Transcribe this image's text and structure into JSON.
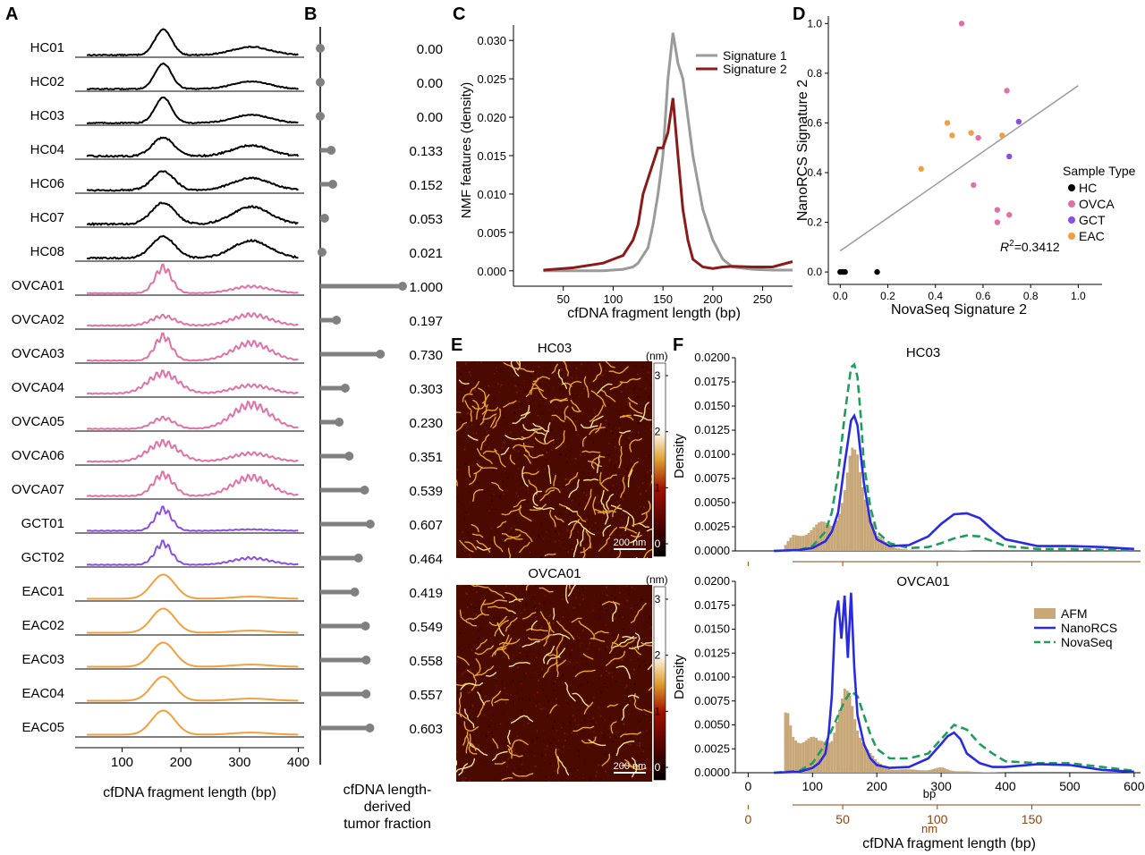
{
  "panel_letters": {
    "A": "A",
    "B": "B",
    "C": "C",
    "D": "D",
    "E": "E",
    "F": "F"
  },
  "colors": {
    "HC": "#000000",
    "OVCA": "#e070a8",
    "GCT": "#8a4fe0",
    "EAC": "#f0a040",
    "sig1": "#9a9a9a",
    "sig2": "#8b1a1a",
    "afm": "#c8a878",
    "nanorcs": "#2a2ae0",
    "novaseq": "#1e9e5a",
    "nm_axis": "#8b4513"
  },
  "chart_data": [
    {
      "id": "A",
      "type": "line",
      "xlabel": "cfDNA fragment length (bp)",
      "x_ticks": [
        100,
        200,
        300,
        400
      ],
      "xlim": [
        20,
        410
      ],
      "samples": [
        {
          "name": "HC01",
          "group": "HC"
        },
        {
          "name": "HC02",
          "group": "HC"
        },
        {
          "name": "HC03",
          "group": "HC"
        },
        {
          "name": "HC04",
          "group": "HC"
        },
        {
          "name": "HC06",
          "group": "HC"
        },
        {
          "name": "HC07",
          "group": "HC"
        },
        {
          "name": "HC08",
          "group": "HC"
        },
        {
          "name": "OVCA01",
          "group": "OVCA"
        },
        {
          "name": "OVCA02",
          "group": "OVCA"
        },
        {
          "name": "OVCA03",
          "group": "OVCA"
        },
        {
          "name": "OVCA04",
          "group": "OVCA"
        },
        {
          "name": "OVCA05",
          "group": "OVCA"
        },
        {
          "name": "OVCA06",
          "group": "OVCA"
        },
        {
          "name": "OVCA07",
          "group": "OVCA"
        },
        {
          "name": "GCT01",
          "group": "GCT"
        },
        {
          "name": "GCT02",
          "group": "GCT"
        },
        {
          "name": "EAC01",
          "group": "EAC"
        },
        {
          "name": "EAC02",
          "group": "EAC"
        },
        {
          "name": "EAC03",
          "group": "EAC"
        },
        {
          "name": "EAC04",
          "group": "EAC"
        },
        {
          "name": "EAC05",
          "group": "EAC"
        }
      ],
      "profile_params": [
        {
          "p1": 0.95,
          "p2": 0.3,
          "w": 0.15,
          "s": 0,
          "n": 0.04,
          "b": 0.05
        },
        {
          "p1": 0.95,
          "p2": 0.28,
          "w": 0.15,
          "s": 0,
          "n": 0.04,
          "b": 0.05
        },
        {
          "p1": 0.95,
          "p2": 0.3,
          "w": 0.15,
          "s": 0,
          "n": 0.04,
          "b": 0.05
        },
        {
          "p1": 0.7,
          "p2": 0.4,
          "w": 0.3,
          "s": 0,
          "n": 0.06,
          "b": 0.08
        },
        {
          "p1": 0.7,
          "p2": 0.45,
          "w": 0.3,
          "s": 0,
          "n": 0.06,
          "b": 0.08
        },
        {
          "p1": 0.8,
          "p2": 0.65,
          "w": 0.35,
          "s": 0,
          "n": 0.06,
          "b": 0.08
        },
        {
          "p1": 0.8,
          "p2": 0.65,
          "w": 0.35,
          "s": 0,
          "n": 0.06,
          "b": 0.08
        },
        {
          "p1": 0.95,
          "p2": 0.25,
          "w": 0.15,
          "s": 12,
          "n": 0,
          "b": 0.04
        },
        {
          "p1": 0.35,
          "p2": 0.4,
          "w": 0.35,
          "s": 10,
          "n": 0,
          "b": 0.1
        },
        {
          "p1": 0.9,
          "p2": 0.65,
          "w": 0.15,
          "s": 10,
          "n": 0,
          "b": 0.06
        },
        {
          "p1": 0.75,
          "p2": 0.3,
          "w": 0.55,
          "s": 10,
          "n": 0,
          "b": 0.1
        },
        {
          "p1": 0.4,
          "p2": 0.9,
          "w": 0.3,
          "s": 10,
          "n": 0,
          "b": 0.05
        },
        {
          "p1": 0.7,
          "p2": 0.3,
          "w": 0.55,
          "s": 10,
          "n": 0,
          "b": 0.1
        },
        {
          "p1": 0.8,
          "p2": 0.7,
          "w": 0.25,
          "s": 10,
          "n": 0,
          "b": 0.08
        },
        {
          "p1": 0.8,
          "p2": 0.05,
          "w": 0.15,
          "s": 10,
          "n": 0,
          "b": 0.05
        },
        {
          "p1": 0.8,
          "p2": 0.25,
          "w": 0.15,
          "s": 10,
          "n": 0,
          "b": 0.05
        },
        {
          "p1": 0.9,
          "p2": 0.08,
          "w": 0.35,
          "s": 0,
          "n": 0,
          "b": 0.05
        },
        {
          "p1": 0.9,
          "p2": 0.08,
          "w": 0.35,
          "s": 0,
          "n": 0,
          "b": 0.05
        },
        {
          "p1": 0.9,
          "p2": 0.08,
          "w": 0.35,
          "s": 0,
          "n": 0,
          "b": 0.05
        },
        {
          "p1": 0.9,
          "p2": 0.08,
          "w": 0.35,
          "s": 0,
          "n": 0,
          "b": 0.05
        },
        {
          "p1": 0.9,
          "p2": 0.08,
          "w": 0.35,
          "s": 0,
          "n": 0,
          "b": 0.05
        }
      ]
    },
    {
      "id": "B",
      "type": "bar",
      "xlabel": [
        "cfDNA length-",
        "derived",
        "tumor fraction"
      ],
      "xlim": [
        0,
        1
      ],
      "categories": [
        "HC01",
        "HC02",
        "HC03",
        "HC04",
        "HC06",
        "HC07",
        "HC08",
        "OVCA01",
        "OVCA02",
        "OVCA03",
        "OVCA04",
        "OVCA05",
        "OVCA06",
        "OVCA07",
        "GCT01",
        "GCT02",
        "EAC01",
        "EAC02",
        "EAC03",
        "EAC04",
        "EAC05"
      ],
      "values": [
        0,
        0,
        0,
        0.133,
        0.152,
        0.053,
        0.021,
        1,
        0.197,
        0.73,
        0.303,
        0.23,
        0.351,
        0.539,
        0.607,
        0.464,
        0.419,
        0.549,
        0.558,
        0.557,
        0.603
      ],
      "value_labels": [
        "0.00",
        "0.00",
        "0.00",
        "0.133",
        "0.152",
        "0.053",
        "0.021",
        "1.000",
        "0.197",
        "0.730",
        "0.303",
        "0.230",
        "0.351",
        "0.539",
        "0.607",
        "0.464",
        "0.419",
        "0.549",
        "0.558",
        "0.557",
        "0.603"
      ]
    },
    {
      "id": "C",
      "type": "line",
      "xlabel": "cfDNA fragment length (bp)",
      "ylabel": "NMF features (density)",
      "xlim": [
        0,
        280
      ],
      "ylim": [
        -0.002,
        0.032
      ],
      "x_ticks": [
        50,
        100,
        150,
        200,
        250
      ],
      "y_ticks": [
        0,
        0.005,
        0.01,
        0.015,
        0.02,
        0.025,
        0.03
      ],
      "y_tick_labels": [
        "0.000",
        "0.005",
        "0.010",
        "0.015",
        "0.020",
        "0.025",
        "0.030"
      ],
      "series": [
        {
          "name": "Signature 1",
          "x": [
            30,
            60,
            90,
            110,
            120,
            125,
            130,
            135,
            140,
            145,
            150,
            155,
            160,
            165,
            170,
            175,
            180,
            190,
            200,
            210,
            220,
            240,
            260,
            280
          ],
          "y": [
            0,
            0,
            0,
            0.0002,
            0.0005,
            0.001,
            0.002,
            0.003,
            0.006,
            0.01,
            0.015,
            0.025,
            0.031,
            0.027,
            0.025,
            0.02,
            0.015,
            0.008,
            0.004,
            0.0015,
            0.0005,
            0.0002,
            0.0001,
            0.0001
          ]
        },
        {
          "name": "Signature 2",
          "x": [
            30,
            60,
            90,
            100,
            110,
            115,
            120,
            125,
            130,
            135,
            140,
            145,
            150,
            155,
            160,
            165,
            170,
            175,
            180,
            190,
            200,
            210,
            220,
            240,
            260,
            280
          ],
          "y": [
            0.0001,
            0.0004,
            0.001,
            0.0015,
            0.002,
            0.003,
            0.004,
            0.006,
            0.01,
            0.012,
            0.014,
            0.016,
            0.016,
            0.018,
            0.0225,
            0.015,
            0.008,
            0.004,
            0.0015,
            0.0005,
            0.0003,
            0.0005,
            0.0006,
            0.0005,
            0.0005,
            0.0012
          ]
        }
      ]
    },
    {
      "id": "D",
      "type": "scatter",
      "xlabel": "NovaSeq Signature 2",
      "ylabel": "NanoRCS Signature 2",
      "xlim": [
        -0.05,
        1.1
      ],
      "ylim": [
        -0.05,
        1.03
      ],
      "x_ticks": [
        0,
        0.2,
        0.4,
        0.6,
        0.8,
        1
      ],
      "x_tick_labels": [
        "0.0",
        "0.2",
        "0.4",
        "0.6",
        "0.8",
        "1.0"
      ],
      "y_ticks": [
        0,
        0.2,
        0.4,
        0.6,
        0.8,
        1
      ],
      "y_tick_labels": [
        "0.0",
        "0.2",
        "0.4",
        "0.6",
        "0.8",
        "1.0"
      ],
      "legend_title": "Sample Type",
      "legend": [
        "HC",
        "OVCA",
        "GCT",
        "EAC"
      ],
      "annotation": {
        "prefix": "R",
        "sup": "2",
        "suffix": "=0.3412"
      },
      "fit_line": {
        "x": [
          0,
          1
        ],
        "y": [
          0.085,
          0.75
        ]
      },
      "points": [
        {
          "g": "HC",
          "x": 0,
          "y": 0
        },
        {
          "g": "HC",
          "x": 0.02,
          "y": 0
        },
        {
          "g": "HC",
          "x": 0.01,
          "y": 0
        },
        {
          "g": "HC",
          "x": 0.155,
          "y": 0
        },
        {
          "g": "OVCA",
          "x": 0.51,
          "y": 1
        },
        {
          "g": "OVCA",
          "x": 0.7,
          "y": 0.73
        },
        {
          "g": "OVCA",
          "x": 0.58,
          "y": 0.54
        },
        {
          "g": "OVCA",
          "x": 0.56,
          "y": 0.35
        },
        {
          "g": "OVCA",
          "x": 0.66,
          "y": 0.25
        },
        {
          "g": "OVCA",
          "x": 0.71,
          "y": 0.23
        },
        {
          "g": "OVCA",
          "x": 0.66,
          "y": 0.2
        },
        {
          "g": "GCT",
          "x": 0.75,
          "y": 0.605
        },
        {
          "g": "GCT",
          "x": 0.71,
          "y": 0.465
        },
        {
          "g": "EAC",
          "x": 0.45,
          "y": 0.6
        },
        {
          "g": "EAC",
          "x": 0.47,
          "y": 0.55
        },
        {
          "g": "EAC",
          "x": 0.55,
          "y": 0.56
        },
        {
          "g": "EAC",
          "x": 0.68,
          "y": 0.55
        },
        {
          "g": "EAC",
          "x": 0.34,
          "y": 0.415
        }
      ]
    },
    {
      "id": "F",
      "type": "area",
      "titles": [
        "HC03",
        "OVCA01"
      ],
      "xlabel": "cfDNA fragment length (bp)",
      "ylabel": "Density",
      "bp_unit": "bp",
      "nm_unit": "nm",
      "xlim": [
        -20,
        610
      ],
      "ylim": [
        0,
        0.02
      ],
      "x_ticks": [
        0,
        100,
        200,
        300,
        400,
        500,
        600
      ],
      "y_ticks": [
        0,
        0.0025,
        0.005,
        0.0075,
        0.01,
        0.0125,
        0.015,
        0.0175,
        0.02
      ],
      "y_tick_labels": [
        "0.0000",
        "0.0025",
        "0.0050",
        "0.0075",
        "0.0100",
        "0.0125",
        "0.0150",
        "0.0175",
        "0.0200"
      ],
      "nm_ticks": [
        0,
        50,
        100,
        150
      ],
      "bp_per_nm": 2.94,
      "legend": [
        "AFM",
        "NanoRCS",
        "NovaSeq"
      ],
      "panels": [
        {
          "title": "HC03",
          "nanorcs": {
            "x": [
              40,
              80,
              100,
              120,
              130,
              140,
              150,
              160,
              165,
              170,
              175,
              180,
              190,
              200,
              220,
              250,
              280,
              300,
              320,
              340,
              360,
              380,
              400,
              450,
              500,
              550,
              600
            ],
            "y": [
              0,
              0.0001,
              0.0003,
              0.001,
              0.002,
              0.004,
              0.009,
              0.0135,
              0.014,
              0.013,
              0.01,
              0.007,
              0.003,
              0.0012,
              0.0005,
              0.0006,
              0.0015,
              0.0028,
              0.0038,
              0.0039,
              0.0034,
              0.0022,
              0.0012,
              0.0005,
              0.0005,
              0.0004,
              0.0002
            ]
          },
          "novaseq": {
            "x": [
              40,
              80,
              100,
              120,
              130,
              140,
              150,
              160,
              165,
              170,
              175,
              180,
              190,
              200,
              220,
              250,
              280,
              300,
              320,
              340,
              360,
              380,
              400,
              450,
              500,
              550,
              600
            ],
            "y": [
              0,
              0.0001,
              0.0005,
              0.002,
              0.004,
              0.008,
              0.014,
              0.019,
              0.0193,
              0.018,
              0.014,
              0.009,
              0.0045,
              0.002,
              0.0008,
              0.0003,
              0.0004,
              0.0008,
              0.0013,
              0.0016,
              0.0015,
              0.001,
              0.0005,
              0.0002,
              0.0002,
              0.0001,
              0.0001
            ]
          },
          "afm": {
            "x": [
              55,
              70,
              90,
              110,
              130,
              140,
              150,
              160,
              170,
              180,
              190,
              200,
              220,
              250,
              280,
              300,
              320,
              350,
              400,
              450
            ],
            "y": [
              0.0003,
              0.0015,
              0.002,
              0.0025,
              0.003,
              0.004,
              0.006,
              0.009,
              0.0095,
              0.007,
              0.004,
              0.0015,
              0.0005,
              0.0001,
              0.0001,
              0.0001,
              0.0001,
              0,
              0,
              0
            ]
          }
        },
        {
          "title": "OVCA01",
          "nanorcs": {
            "x": [
              40,
              80,
              100,
              110,
              120,
              125,
              130,
              135,
              140,
              145,
              150,
              155,
              160,
              165,
              170,
              180,
              190,
              200,
              220,
              250,
              280,
              300,
              310,
              320,
              330,
              340,
              360,
              380,
              400,
              450,
              500,
              550,
              600
            ],
            "y": [
              0,
              0.0001,
              0.0005,
              0.001,
              0.002,
              0.004,
              0.008,
              0.016,
              0.018,
              0.014,
              0.0185,
              0.012,
              0.0188,
              0.011,
              0.006,
              0.003,
              0.0015,
              0.0008,
              0.0005,
              0.0006,
              0.0015,
              0.003,
              0.0038,
              0.0042,
              0.0035,
              0.002,
              0.001,
              0.0006,
              0.0006,
              0.0009,
              0.0008,
              0.0003,
              0.0001
            ]
          },
          "novaseq": {
            "x": [
              40,
              80,
              100,
              120,
              130,
              140,
              150,
              160,
              170,
              180,
              190,
              200,
              220,
              250,
              280,
              300,
              320,
              340,
              360,
              380,
              400,
              450,
              500,
              550,
              600
            ],
            "y": [
              0,
              0.0002,
              0.001,
              0.003,
              0.0045,
              0.006,
              0.0075,
              0.0085,
              0.008,
              0.006,
              0.004,
              0.0025,
              0.0015,
              0.0015,
              0.002,
              0.0035,
              0.005,
              0.0045,
              0.003,
              0.002,
              0.0012,
              0.001,
              0.001,
              0.0006,
              0.0002
            ]
          },
          "afm": {
            "x": [
              55,
              60,
              70,
              90,
              110,
              130,
              140,
              150,
              160,
              170,
              180,
              190,
              200,
              220,
              250,
              280,
              300,
              320,
              350,
              400
            ],
            "y": [
              0.0045,
              0.006,
              0.004,
              0.0035,
              0.003,
              0.004,
              0.006,
              0.0075,
              0.007,
              0.005,
              0.0035,
              0.002,
              0.001,
              0.0004,
              0.0003,
              0.0003,
              0.0005,
              0.0002,
              0.0001,
              0
            ]
          }
        }
      ]
    }
  ],
  "afm": {
    "images": [
      {
        "title": "HC03",
        "scale": "200 nm",
        "seed": 7
      },
      {
        "title": "OVCA01",
        "scale": "200 nm",
        "seed": 23
      }
    ],
    "colorbar": {
      "unit": "(nm)",
      "ticks": [
        "3",
        "2",
        "1",
        "0"
      ]
    }
  }
}
